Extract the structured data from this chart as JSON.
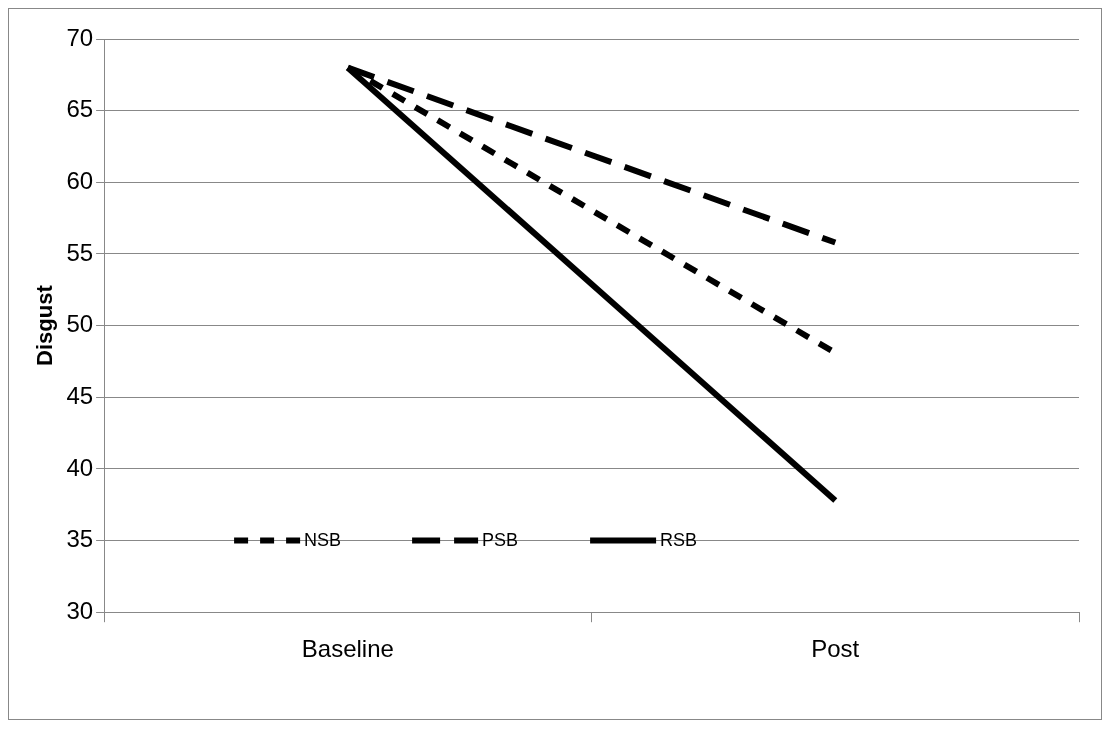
{
  "chart_data": {
    "type": "line",
    "ylabel": "Disgust",
    "categories": [
      "Baseline",
      "Post"
    ],
    "series": [
      {
        "name": "NSB",
        "color": "#000000",
        "values": [
          68,
          48.1
        ],
        "line_style": "dashed"
      },
      {
        "name": "PSB",
        "color": "#000000",
        "values": [
          68,
          55.8
        ],
        "line_style": "dashed"
      },
      {
        "name": "RSB",
        "color": "#000000",
        "values": [
          68,
          37.8
        ],
        "line_style": "solid"
      }
    ],
    "ylim": [
      30,
      70
    ],
    "yticks": [
      30,
      35,
      40,
      45,
      50,
      55,
      60,
      65,
      70
    ],
    "grid": "y",
    "legend": "bottom left",
    "marker": "none"
  }
}
